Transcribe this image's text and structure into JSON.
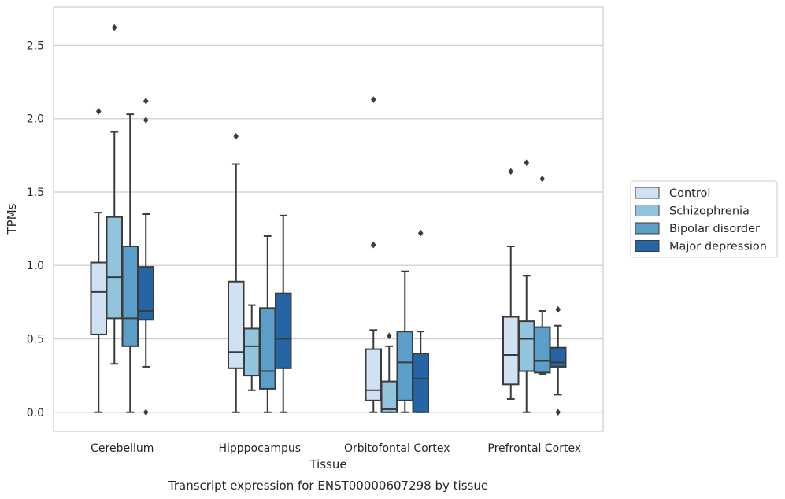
{
  "chart_data": {
    "type": "boxplot",
    "title": "",
    "caption": "Transcript expression for ENST00000607298 by tissue",
    "xlabel": "Tissue",
    "ylabel": "TPMs",
    "ylim": [
      -0.13,
      2.76
    ],
    "yticks": [
      "0.0",
      "0.5",
      "1.0",
      "1.5",
      "2.0",
      "2.5"
    ],
    "grid": true,
    "legend_position": "right",
    "categories": [
      "Cerebellum",
      "Hipppocampus",
      "Orbitofontal Cortex",
      "Prefrontal Cortex"
    ],
    "series": [
      {
        "name": "Control",
        "color": "#cfe1f2",
        "boxes": [
          {
            "whislo": 0.0,
            "q1": 0.53,
            "med": 0.82,
            "q3": 1.02,
            "whishi": 1.36,
            "fliers": [
              2.05
            ]
          },
          {
            "whislo": 0.0,
            "q1": 0.3,
            "med": 0.41,
            "q3": 0.89,
            "whishi": 1.69,
            "fliers": [
              1.88
            ]
          },
          {
            "whislo": 0.0,
            "q1": 0.08,
            "med": 0.15,
            "q3": 0.43,
            "whishi": 0.56,
            "fliers": [
              1.14,
              2.13
            ]
          },
          {
            "whislo": 0.09,
            "q1": 0.19,
            "med": 0.39,
            "q3": 0.65,
            "whishi": 1.13,
            "fliers": [
              1.64
            ]
          }
        ]
      },
      {
        "name": "Schizophrenia",
        "color": "#93c4de",
        "boxes": [
          {
            "whislo": 0.33,
            "q1": 0.64,
            "med": 0.92,
            "q3": 1.33,
            "whishi": 1.91,
            "fliers": [
              2.62
            ]
          },
          {
            "whislo": 0.15,
            "q1": 0.25,
            "med": 0.45,
            "q3": 0.57,
            "whishi": 0.73,
            "fliers": []
          },
          {
            "whislo": 0.0,
            "q1": 0.0,
            "med": 0.02,
            "q3": 0.21,
            "whishi": 0.45,
            "fliers": [
              0.52
            ]
          },
          {
            "whislo": 0.0,
            "q1": 0.28,
            "med": 0.5,
            "q3": 0.62,
            "whishi": 0.93,
            "fliers": [
              1.7
            ]
          }
        ]
      },
      {
        "name": "Bipolar disorder",
        "color": "#5a9ec9",
        "boxes": [
          {
            "whislo": 0.0,
            "q1": 0.45,
            "med": 0.64,
            "q3": 1.13,
            "whishi": 2.03,
            "fliers": []
          },
          {
            "whislo": 0.0,
            "q1": 0.16,
            "med": 0.28,
            "q3": 0.71,
            "whishi": 1.2,
            "fliers": []
          },
          {
            "whislo": 0.0,
            "q1": 0.08,
            "med": 0.34,
            "q3": 0.55,
            "whishi": 0.96,
            "fliers": []
          },
          {
            "whislo": 0.26,
            "q1": 0.27,
            "med": 0.35,
            "q3": 0.58,
            "whishi": 0.69,
            "fliers": [
              1.59
            ]
          }
        ]
      },
      {
        "name": "Major depression",
        "color": "#2565a5",
        "boxes": [
          {
            "whislo": 0.31,
            "q1": 0.63,
            "med": 0.69,
            "q3": 0.99,
            "whishi": 1.35,
            "fliers": [
              0.0,
              1.99,
              2.12
            ]
          },
          {
            "whislo": 0.0,
            "q1": 0.3,
            "med": 0.5,
            "q3": 0.81,
            "whishi": 1.34,
            "fliers": []
          },
          {
            "whislo": 0.0,
            "q1": 0.0,
            "med": 0.23,
            "q3": 0.4,
            "whishi": 0.55,
            "fliers": [
              1.22
            ]
          },
          {
            "whislo": 0.12,
            "q1": 0.31,
            "med": 0.34,
            "q3": 0.44,
            "whishi": 0.59,
            "fliers": [
              0.0,
              0.7
            ]
          }
        ]
      }
    ]
  }
}
